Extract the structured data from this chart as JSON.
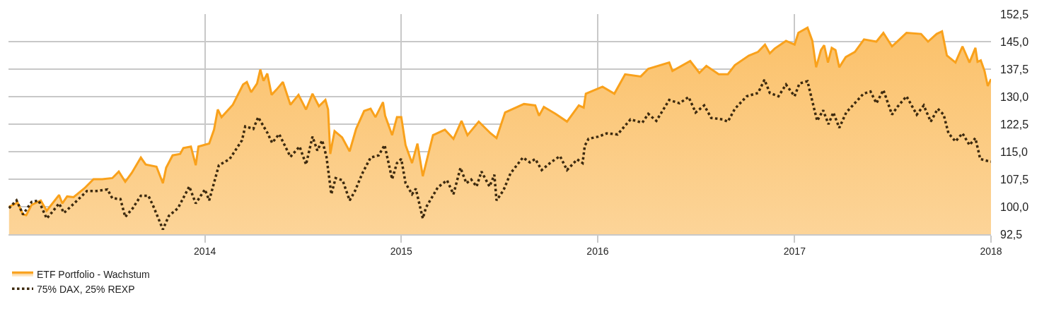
{
  "chart_data": {
    "type": "line",
    "series": [
      {
        "name": "ETF Portfolio - Wachstum",
        "type": "area",
        "color": "#f9a11b",
        "line_style": "solid",
        "x": [
          "2013-01-02",
          "2013-01-18",
          "2013-01-28",
          "2013-02-03",
          "2013-02-13",
          "2013-03-02",
          "2013-03-13",
          "2013-04-05",
          "2013-04-11",
          "2013-04-20",
          "2013-05-02",
          "2013-05-22",
          "2013-06-08",
          "2013-06-24",
          "2013-07-13",
          "2013-07-25",
          "2013-08-06",
          "2013-08-18",
          "2013-09-04",
          "2013-09-13",
          "2013-10-03",
          "2013-10-15",
          "2013-10-21",
          "2013-11-02",
          "2013-11-16",
          "2013-11-22",
          "2013-12-06",
          "2013-12-15",
          "2013-12-20",
          "2014-01-09",
          "2014-01-18",
          "2014-01-25",
          "2014-02-01",
          "2014-02-22",
          "2014-03-13",
          "2014-03-20",
          "2014-03-28",
          "2014-04-08",
          "2014-04-14",
          "2014-04-20",
          "2014-04-27",
          "2014-05-05",
          "2014-05-14",
          "2014-05-26",
          "2014-06-09",
          "2014-06-24",
          "2014-07-08",
          "2014-07-20",
          "2014-08-01",
          "2014-08-13",
          "2014-08-18",
          "2014-08-22",
          "2014-08-30",
          "2014-09-13",
          "2014-09-27",
          "2014-10-09",
          "2014-10-24",
          "2014-11-05",
          "2014-11-14",
          "2014-11-28",
          "2014-12-02",
          "2014-12-15",
          "2014-12-24",
          "2015-01-01",
          "2015-01-09",
          "2015-01-21",
          "2015-01-31",
          "2015-02-10",
          "2015-03-01",
          "2015-03-23",
          "2015-04-08",
          "2015-04-23",
          "2015-05-04",
          "2015-05-25",
          "2015-06-16",
          "2015-06-27",
          "2015-07-13",
          "2015-08-17",
          "2015-09-07",
          "2015-09-14",
          "2015-09-23",
          "2015-10-15",
          "2015-11-05",
          "2015-11-27",
          "2015-12-06",
          "2015-12-10",
          "2016-01-10",
          "2016-02-01",
          "2016-02-21",
          "2016-03-21",
          "2016-04-04",
          "2016-05-13",
          "2016-05-19",
          "2016-06-21",
          "2016-07-08",
          "2016-07-21",
          "2016-08-13",
          "2016-08-30",
          "2016-09-12",
          "2016-10-08",
          "2016-10-25",
          "2016-11-07",
          "2016-11-16",
          "2016-11-25",
          "2016-12-16",
          "2017-01-01",
          "2017-01-08",
          "2017-01-25",
          "2017-02-03",
          "2017-02-10",
          "2017-02-19",
          "2017-02-25",
          "2017-03-04",
          "2017-03-11",
          "2017-03-18",
          "2017-03-25",
          "2017-04-06",
          "2017-04-23",
          "2017-05-10",
          "2017-06-02",
          "2017-06-15",
          "2017-07-01",
          "2017-07-15",
          "2017-07-28",
          "2017-08-24",
          "2017-09-06",
          "2017-09-22",
          "2017-10-02",
          "2017-10-11",
          "2017-10-27",
          "2017-11-09",
          "2017-11-22",
          "2017-12-03",
          "2017-12-07",
          "2017-12-13",
          "2017-12-20",
          "2017-12-26",
          "2018-01-01"
        ],
        "values": [
          100,
          101.1,
          97.9,
          97.7,
          100.5,
          101.7,
          98.9,
          103.2,
          100.9,
          102.8,
          102.6,
          105,
          107.5,
          107.5,
          107.8,
          109.6,
          106.8,
          109.2,
          113.4,
          111.5,
          110.9,
          106.4,
          110.6,
          114,
          114.4,
          116,
          116.4,
          111.3,
          116.4,
          117.2,
          121,
          126.5,
          124.4,
          127.8,
          133.3,
          134,
          131.2,
          133.6,
          137.4,
          134.3,
          136.3,
          130.5,
          131.9,
          134,
          127.8,
          130.5,
          126.5,
          130.8,
          127.4,
          129.1,
          126.5,
          114.4,
          120.6,
          118.9,
          115.1,
          121.2,
          126.1,
          126.7,
          124.4,
          128.5,
          124.8,
          119.5,
          124.4,
          124.4,
          116.8,
          111.9,
          117.2,
          108.3,
          119.5,
          121,
          118.5,
          123.4,
          119.5,
          123.2,
          120,
          118.7,
          125.7,
          128,
          127.6,
          124.8,
          127.2,
          125.3,
          123.2,
          127.6,
          127,
          130.8,
          132.7,
          130.8,
          136.1,
          135.5,
          137.6,
          139.3,
          137,
          139.7,
          136.5,
          138.4,
          136.1,
          136.1,
          138.6,
          141.2,
          142.2,
          144.2,
          141.8,
          143.1,
          145.2,
          144.2,
          147.4,
          148.8,
          145.2,
          138,
          142.7,
          144,
          139.3,
          143.3,
          142.7,
          138,
          140.8,
          142.2,
          145.6,
          145,
          147.4,
          143.7,
          145.6,
          147.4,
          147.1,
          145,
          147.1,
          147.8,
          141.2,
          139.3,
          143.7,
          139.3,
          143.3,
          139.5,
          139.9,
          137,
          132.9,
          134.8
        ]
      },
      {
        "name": "75% DAX, 25% REXP",
        "color": "#3d2a0f",
        "line_style": "dotted",
        "x": [
          "2013-01-02",
          "2013-01-16",
          "2013-01-28",
          "2013-02-13",
          "2013-02-26",
          "2013-03-13",
          "2013-03-23",
          "2013-04-05",
          "2013-04-14",
          "2013-04-28",
          "2013-05-27",
          "2013-06-14",
          "2013-07-04",
          "2013-07-13",
          "2013-07-28",
          "2013-08-06",
          "2013-08-20",
          "2013-09-04",
          "2013-09-18",
          "2013-09-27",
          "2013-10-15",
          "2013-10-26",
          "2013-11-12",
          "2013-12-03",
          "2013-12-15",
          "2014-01-01",
          "2014-01-09",
          "2014-01-27",
          "2014-02-16",
          "2014-03-11",
          "2014-03-17",
          "2014-04-01",
          "2014-04-10",
          "2014-04-27",
          "2014-05-06",
          "2014-05-19",
          "2014-06-09",
          "2014-06-26",
          "2014-07-08",
          "2014-07-20",
          "2014-07-29",
          "2014-08-07",
          "2014-08-15",
          "2014-08-24",
          "2014-09-01",
          "2014-09-14",
          "2014-09-27",
          "2014-10-07",
          "2014-10-21",
          "2014-11-05",
          "2014-11-20",
          "2014-12-01",
          "2014-12-15",
          "2014-12-24",
          "2015-01-01",
          "2015-01-09",
          "2015-01-21",
          "2015-01-28",
          "2015-02-10",
          "2015-02-16",
          "2015-03-10",
          "2015-03-27",
          "2015-04-08",
          "2015-04-21",
          "2015-05-02",
          "2015-05-11",
          "2015-05-21",
          "2015-05-30",
          "2015-06-14",
          "2015-06-23",
          "2015-06-27",
          "2015-07-10",
          "2015-07-23",
          "2015-08-15",
          "2015-08-28",
          "2015-09-07",
          "2015-09-19",
          "2015-10-06",
          "2015-10-23",
          "2015-11-05",
          "2015-11-24",
          "2015-12-04",
          "2015-12-08",
          "2015-12-15",
          "2016-01-02",
          "2016-01-18",
          "2016-02-07",
          "2016-03-02",
          "2016-03-24",
          "2016-04-04",
          "2016-04-19",
          "2016-05-13",
          "2016-06-01",
          "2016-06-18",
          "2016-07-01",
          "2016-07-17",
          "2016-07-30",
          "2016-08-20",
          "2016-08-30",
          "2016-09-12",
          "2016-10-04",
          "2016-10-25",
          "2016-11-06",
          "2016-11-16",
          "2016-12-02",
          "2016-12-16",
          "2017-01-01",
          "2017-01-10",
          "2017-01-25",
          "2017-02-07",
          "2017-02-12",
          "2017-02-23",
          "2017-03-05",
          "2017-03-14",
          "2017-03-25",
          "2017-04-07",
          "2017-04-19",
          "2017-05-09",
          "2017-05-22",
          "2017-06-02",
          "2017-06-15",
          "2017-07-01",
          "2017-07-11",
          "2017-07-28",
          "2017-08-16",
          "2017-08-29",
          "2017-09-11",
          "2017-09-24",
          "2017-10-05",
          "2017-10-14",
          "2017-10-27",
          "2017-11-09",
          "2017-11-22",
          "2017-12-03",
          "2017-12-12",
          "2017-12-25",
          "2018-01-01"
        ],
        "values": [
          99.6,
          101.7,
          97.9,
          101.3,
          101.7,
          96.8,
          98.5,
          100.9,
          98.3,
          100.2,
          104.3,
          104.3,
          104.7,
          102.3,
          102.1,
          97.2,
          99.6,
          103,
          103,
          100.2,
          93.8,
          97.5,
          99.6,
          105.5,
          100.9,
          104.7,
          101.7,
          111.3,
          113,
          118.1,
          121.9,
          121.2,
          124.4,
          120.2,
          117.4,
          119.8,
          113.6,
          116.4,
          111.5,
          119.1,
          115.3,
          118.1,
          113.6,
          103.4,
          107.8,
          107.2,
          101.7,
          104.3,
          109.2,
          113.4,
          114,
          116.8,
          107.5,
          111.9,
          113,
          106.4,
          103.4,
          104.9,
          96.8,
          99.8,
          105.3,
          107.2,
          103.4,
          110.6,
          106.4,
          107.4,
          105.5,
          109.6,
          105.5,
          108.7,
          101.7,
          104.5,
          109.1,
          113.4,
          112.1,
          113,
          110,
          112.1,
          113.8,
          110,
          112.9,
          111.9,
          116.6,
          118.5,
          119.1,
          120,
          119.7,
          123.8,
          122.9,
          125.3,
          123.4,
          129.1,
          128.2,
          129.9,
          125.7,
          127.6,
          124.2,
          123.8,
          123.2,
          126.7,
          130.1,
          131,
          134.6,
          131,
          130.1,
          133.3,
          130.1,
          133.6,
          134.2,
          126.3,
          123.4,
          126.3,
          122.5,
          125.7,
          121.5,
          125.7,
          127.6,
          130.8,
          131.4,
          128.2,
          131.8,
          125.1,
          127.2,
          130.1,
          125.1,
          127.6,
          123.2,
          126.7,
          125.1,
          120,
          117.8,
          120,
          116.8,
          118.7,
          113,
          112.5,
          112.3
        ]
      }
    ],
    "xlim": [
      "2013-01-01",
      "2018-01-01"
    ],
    "xticks": [
      {
        "value": "2014-01-01",
        "label": "2014"
      },
      {
        "value": "2015-01-01",
        "label": "2015"
      },
      {
        "value": "2016-01-01",
        "label": "2016"
      },
      {
        "value": "2017-01-01",
        "label": "2017"
      },
      {
        "value": "2018-01-01",
        "label": "2018"
      }
    ],
    "ylim": [
      92.5,
      152.5
    ],
    "yticks": [
      {
        "value": 92.5,
        "label": "92,5"
      },
      {
        "value": 100,
        "label": "100,0"
      },
      {
        "value": 107.5,
        "label": "107,5"
      },
      {
        "value": 115,
        "label": "115,0"
      },
      {
        "value": 122.5,
        "label": "122,5"
      },
      {
        "value": 130,
        "label": "130,0"
      },
      {
        "value": 137.5,
        "label": "137,5"
      },
      {
        "value": 145,
        "label": "145,0"
      },
      {
        "value": 152.5,
        "label": "152,5"
      }
    ],
    "grid": true,
    "legend": "bottom"
  }
}
